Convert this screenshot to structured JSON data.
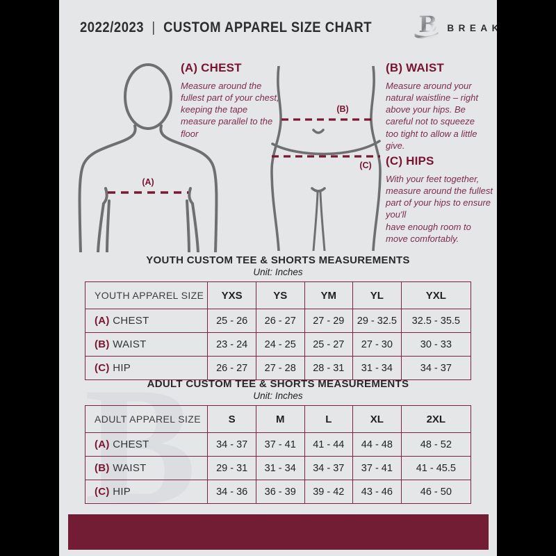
{
  "colors": {
    "frame_bg": "#000000",
    "page_bg": "#e5e6e8",
    "maroon_heading": "#7a1230",
    "maroon_body_text": "#7d2c4d",
    "table_border": "#7c2240",
    "footer_bar": "#731d35",
    "figure_stroke": "#6e6f71",
    "dark_text": "#2d2d2f",
    "watermark": "#dcdde0"
  },
  "header": {
    "year": "2022/2023",
    "divider": "|",
    "title": "CUSTOM APPAREL SIZE CHART",
    "brand": "BREAKAWAY",
    "logo_icon": "breakaway-b-logo"
  },
  "instructions": {
    "chest": {
      "heading": "(A) CHEST",
      "body": "Measure around the fullest part of your chest, keeping the tape measure parallel to the floor"
    },
    "waist": {
      "heading": "(B) WAIST",
      "body": "Measure around your natural waistline – right above your hips. Be careful not to squeeze too tight to allow a little give."
    },
    "hips": {
      "heading": "(C) HIPS",
      "body": "With your feet together, measure around the fullest part of your hips to ensure you'll\nhave enough room to move comfortably."
    }
  },
  "diagram": {
    "chest_label": "(A)",
    "waist_label": "(B)",
    "hips_label": "(C)"
  },
  "watermark_letter": "B",
  "tables": [
    {
      "title": "YOUTH CUSTOM TEE & SHORTS MEASUREMENTS",
      "unit": "Unit: Inches",
      "columns": [
        "YOUTH APPAREL SIZE",
        "YXS",
        "YS",
        "YM",
        "YL",
        "YXL"
      ],
      "rows": [
        {
          "prefix": "(A)",
          "label": "CHEST",
          "values": [
            "25 - 26",
            "26 - 27",
            "27 - 29",
            "29 - 32.5",
            "32.5 - 35.5"
          ]
        },
        {
          "prefix": "(B)",
          "label": "WAIST",
          "values": [
            "23 - 24",
            "24 - 25",
            "25 - 27",
            "27 - 30",
            "30 - 33"
          ]
        },
        {
          "prefix": "(C)",
          "label": "HIP",
          "values": [
            "26 - 27",
            "27 - 28",
            "28 - 31",
            "31 - 34",
            "34 - 37"
          ]
        }
      ]
    },
    {
      "title": "ADULT CUSTOM TEE & SHORTS MEASUREMENTS",
      "unit": "Unit: Inches",
      "columns": [
        "ADULT APPAREL SIZE",
        "S",
        "M",
        "L",
        "XL",
        "2XL"
      ],
      "rows": [
        {
          "prefix": "(A)",
          "label": "CHEST",
          "values": [
            "34 - 37",
            "37 - 41",
            "41 - 44",
            "44 - 48",
            "48 - 52"
          ]
        },
        {
          "prefix": "(B)",
          "label": "WAIST",
          "values": [
            "29 - 31",
            "31 - 34",
            "34 - 37",
            "37 - 41",
            "41 - 45.5"
          ]
        },
        {
          "prefix": "(C)",
          "label": "HIP",
          "values": [
            "34 - 36",
            "36 - 39",
            "39 - 42",
            "43 - 46",
            "46 - 50"
          ]
        }
      ]
    }
  ]
}
